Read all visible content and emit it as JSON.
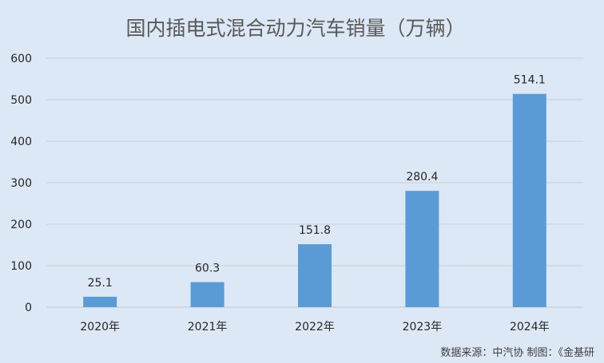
{
  "chart_data": {
    "type": "bar",
    "title": "国内插电式混合动力汽车销量（万辆）",
    "categories": [
      "2020年",
      "2021年",
      "2022年",
      "2023年",
      "2024年"
    ],
    "values": [
      25.1,
      60.3,
      151.8,
      280.4,
      514.1
    ],
    "data_labels": [
      "25.1",
      "60.3",
      "151.8",
      "280.4",
      "514.1"
    ],
    "y_ticks": [
      "0",
      "100",
      "200",
      "300",
      "400",
      "500",
      "600"
    ],
    "ylim": [
      0,
      600
    ],
    "grid": true,
    "legend": "none",
    "bar_color": "#5b9bd5",
    "source_note": "数据来源：中汽协   制图：《金基研"
  }
}
